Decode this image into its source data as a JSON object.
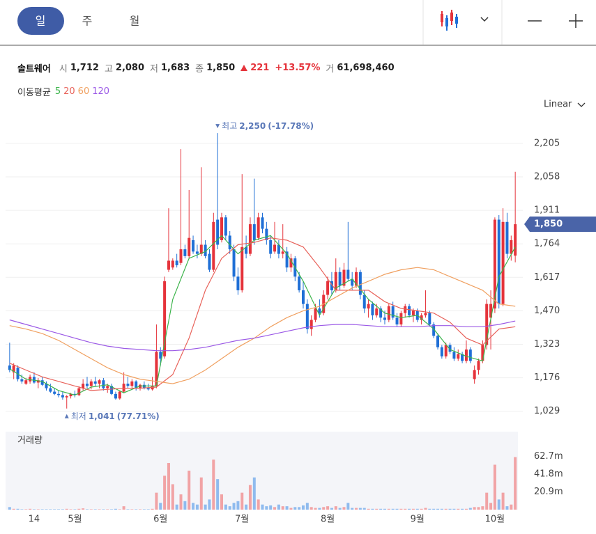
{
  "tabs": [
    "일",
    "주",
    "월"
  ],
  "stock": {
    "name": "솔트웨어",
    "open_label": "시",
    "open": "1,712",
    "high_label": "고",
    "high": "2,080",
    "low_label": "저",
    "low": "1,683",
    "close_label": "종",
    "close": "1,850",
    "change": "221",
    "change_pct": "+13.57%",
    "volume_label": "거",
    "volume": "61,698,460"
  },
  "ma_label": "이동평균",
  "scale_mode": "Linear",
  "chart_data": {
    "type": "candlestick",
    "up_color": "#e5333b",
    "down_color": "#1f6fd6",
    "up_volume_color": "#f1a3a5",
    "down_volume_color": "#8fbbee",
    "ohlc": [
      [
        1230,
        1330,
        1200,
        1210
      ],
      [
        1200,
        1240,
        1170,
        1230
      ],
      [
        1220,
        1230,
        1160,
        1170
      ],
      [
        1170,
        1190,
        1150,
        1160
      ],
      [
        1150,
        1175,
        1145,
        1165
      ],
      [
        1160,
        1190,
        1150,
        1180
      ],
      [
        1180,
        1200,
        1150,
        1155
      ],
      [
        1155,
        1175,
        1130,
        1165
      ],
      [
        1165,
        1180,
        1140,
        1145
      ],
      [
        1150,
        1160,
        1120,
        1130
      ],
      [
        1130,
        1150,
        1110,
        1115
      ],
      [
        1115,
        1130,
        1100,
        1105
      ],
      [
        1105,
        1120,
        1090,
        1100
      ],
      [
        1100,
        1115,
        1080,
        1090
      ],
      [
        1090,
        1100,
        1041,
        1095
      ],
      [
        1095,
        1110,
        1085,
        1105
      ],
      [
        1105,
        1120,
        1090,
        1100
      ],
      [
        1100,
        1140,
        1095,
        1130
      ],
      [
        1130,
        1170,
        1120,
        1150
      ],
      [
        1150,
        1180,
        1130,
        1140
      ],
      [
        1140,
        1170,
        1125,
        1160
      ],
      [
        1160,
        1180,
        1140,
        1150
      ],
      [
        1150,
        1170,
        1130,
        1165
      ],
      [
        1165,
        1175,
        1120,
        1130
      ],
      [
        1130,
        1150,
        1110,
        1140
      ],
      [
        1140,
        1150,
        1100,
        1105
      ],
      [
        1105,
        1115,
        1080,
        1085
      ],
      [
        1085,
        1120,
        1080,
        1115
      ],
      [
        1115,
        1200,
        1110,
        1150
      ],
      [
        1150,
        1180,
        1130,
        1140
      ],
      [
        1140,
        1170,
        1130,
        1160
      ],
      [
        1160,
        1165,
        1120,
        1130
      ],
      [
        1130,
        1150,
        1120,
        1145
      ],
      [
        1145,
        1160,
        1125,
        1130
      ],
      [
        1130,
        1150,
        1120,
        1125
      ],
      [
        1125,
        1180,
        1120,
        1140
      ],
      [
        1140,
        1410,
        1130,
        1290
      ],
      [
        1290,
        1310,
        1230,
        1260
      ],
      [
        1270,
        1620,
        1260,
        1600
      ],
      [
        1650,
        1920,
        1640,
        1690
      ],
      [
        1660,
        1700,
        1650,
        1690
      ],
      [
        1690,
        1720,
        1660,
        1670
      ],
      [
        1680,
        2180,
        1670,
        1740
      ],
      [
        1740,
        1760,
        1700,
        1710
      ],
      [
        1710,
        2000,
        1700,
        1790
      ],
      [
        1780,
        1800,
        1720,
        1730
      ],
      [
        1730,
        1760,
        1700,
        1720
      ],
      [
        1720,
        2100,
        1710,
        1760
      ],
      [
        1760,
        1780,
        1700,
        1710
      ],
      [
        1720,
        1740,
        1640,
        1650
      ],
      [
        1650,
        1900,
        1640,
        1860
      ],
      [
        1870,
        2250,
        1740,
        1760
      ],
      [
        1780,
        1900,
        1770,
        1880
      ],
      [
        1880,
        1890,
        1780,
        1800
      ],
      [
        1800,
        1820,
        1720,
        1740
      ],
      [
        1740,
        1760,
        1600,
        1620
      ],
      [
        1620,
        1660,
        1540,
        1560
      ],
      [
        1560,
        2070,
        1550,
        1750
      ],
      [
        1750,
        1800,
        1700,
        1720
      ],
      [
        1720,
        1880,
        1710,
        1850
      ],
      [
        1850,
        2050,
        1760,
        1780
      ],
      [
        1790,
        1900,
        1780,
        1880
      ],
      [
        1880,
        1900,
        1810,
        1830
      ],
      [
        1830,
        1860,
        1760,
        1780
      ],
      [
        1780,
        1800,
        1700,
        1720
      ],
      [
        1730,
        1860,
        1720,
        1760
      ],
      [
        1760,
        1780,
        1700,
        1720
      ],
      [
        1720,
        1850,
        1700,
        1730
      ],
      [
        1730,
        1750,
        1640,
        1660
      ],
      [
        1660,
        1720,
        1640,
        1700
      ],
      [
        1700,
        1710,
        1600,
        1620
      ],
      [
        1620,
        1640,
        1550,
        1560
      ],
      [
        1560,
        1600,
        1480,
        1500
      ],
      [
        1500,
        1520,
        1370,
        1390
      ],
      [
        1390,
        1450,
        1360,
        1430
      ],
      [
        1430,
        1500,
        1420,
        1480
      ],
      [
        1480,
        1520,
        1440,
        1460
      ],
      [
        1460,
        1560,
        1450,
        1540
      ],
      [
        1540,
        1620,
        1520,
        1600
      ],
      [
        1600,
        1640,
        1540,
        1560
      ],
      [
        1560,
        1700,
        1550,
        1640
      ],
      [
        1640,
        1660,
        1560,
        1580
      ],
      [
        1580,
        1680,
        1570,
        1650
      ],
      [
        1650,
        1860,
        1600,
        1610
      ],
      [
        1610,
        1640,
        1560,
        1580
      ],
      [
        1580,
        1660,
        1570,
        1640
      ],
      [
        1640,
        1650,
        1520,
        1540
      ],
      [
        1540,
        1560,
        1460,
        1480
      ],
      [
        1480,
        1520,
        1440,
        1500
      ],
      [
        1500,
        1510,
        1430,
        1450
      ],
      [
        1450,
        1500,
        1440,
        1480
      ],
      [
        1480,
        1490,
        1420,
        1440
      ],
      [
        1440,
        1470,
        1410,
        1430
      ],
      [
        1430,
        1500,
        1420,
        1490
      ],
      [
        1490,
        1510,
        1430,
        1440
      ],
      [
        1440,
        1460,
        1400,
        1410
      ],
      [
        1410,
        1470,
        1400,
        1460
      ],
      [
        1460,
        1500,
        1440,
        1490
      ],
      [
        1490,
        1500,
        1440,
        1450
      ],
      [
        1450,
        1480,
        1420,
        1470
      ],
      [
        1470,
        1480,
        1420,
        1430
      ],
      [
        1430,
        1460,
        1410,
        1450
      ],
      [
        1450,
        1560,
        1440,
        1460
      ],
      [
        1460,
        1470,
        1400,
        1410
      ],
      [
        1410,
        1420,
        1350,
        1360
      ],
      [
        1360,
        1370,
        1300,
        1310
      ],
      [
        1310,
        1320,
        1260,
        1270
      ],
      [
        1270,
        1330,
        1260,
        1320
      ],
      [
        1320,
        1330,
        1280,
        1290
      ],
      [
        1290,
        1310,
        1250,
        1260
      ],
      [
        1260,
        1300,
        1250,
        1280
      ],
      [
        1280,
        1290,
        1240,
        1250
      ],
      [
        1250,
        1340,
        1240,
        1300
      ],
      [
        1300,
        1310,
        1240,
        1250
      ],
      [
        1170,
        1230,
        1150,
        1210
      ],
      [
        1210,
        1260,
        1190,
        1250
      ],
      [
        1250,
        1340,
        1240,
        1320
      ],
      [
        1320,
        1520,
        1300,
        1500
      ],
      [
        1440,
        1560,
        1300,
        1500
      ],
      [
        1480,
        1880,
        1460,
        1870
      ],
      [
        1870,
        1890,
        1480,
        1500
      ],
      [
        1500,
        1920,
        1490,
        1860
      ],
      [
        1860,
        1900,
        1700,
        1720
      ],
      [
        1720,
        1800,
        1690,
        1780
      ],
      [
        1712,
        2080,
        1683,
        1850
      ]
    ],
    "volume": [
      3,
      1,
      1,
      0.5,
      0.5,
      1,
      0.5,
      0.5,
      0.5,
      0.5,
      0.5,
      0.5,
      0.5,
      0.5,
      1,
      0.5,
      0.5,
      1,
      1.5,
      0.5,
      0.5,
      0.5,
      0.5,
      0.5,
      0.5,
      0.5,
      1,
      0.5,
      4,
      0.5,
      0.5,
      0.5,
      0.5,
      0.5,
      0.5,
      1,
      20,
      8,
      40,
      55,
      30,
      6,
      18,
      10,
      46,
      8,
      6,
      38,
      6,
      12,
      59,
      36,
      18,
      6,
      4,
      8,
      10,
      20,
      6,
      29,
      38,
      12,
      6,
      4,
      5,
      3,
      6,
      4,
      4,
      2,
      3,
      3,
      5,
      8,
      3,
      2,
      2,
      3,
      4,
      2,
      4,
      2,
      3,
      8,
      2,
      2,
      2,
      2,
      1,
      1,
      1,
      1,
      1,
      1,
      1,
      1,
      1,
      1,
      1,
      1,
      1,
      1,
      2,
      1,
      1,
      1,
      1,
      1,
      1,
      1,
      1,
      1,
      1,
      2,
      3,
      3,
      4,
      20,
      8,
      53,
      12,
      20,
      4,
      6,
      62
    ],
    "series": [
      {
        "name": "5",
        "color": "#3cb44b",
        "x": [
          0,
          4,
          8,
          12,
          16,
          20,
          24,
          28,
          32,
          36,
          40,
          44,
          48,
          52,
          56,
          60,
          64,
          68,
          72,
          76,
          80,
          84,
          88,
          92,
          96,
          100,
          104,
          108,
          112,
          116,
          120,
          124
        ],
        "values": [
          1215,
          1170,
          1160,
          1120,
          1100,
          1135,
          1145,
          1110,
          1140,
          1140,
          1520,
          1700,
          1730,
          1800,
          1720,
          1780,
          1800,
          1720,
          1600,
          1450,
          1570,
          1610,
          1520,
          1460,
          1440,
          1450,
          1390,
          1300,
          1270,
          1250,
          1620,
          1750
        ]
      },
      {
        "name": "20",
        "color": "#e8625a",
        "x": [
          0,
          4,
          8,
          12,
          16,
          20,
          24,
          28,
          32,
          36,
          40,
          44,
          48,
          52,
          56,
          60,
          64,
          68,
          72,
          76,
          80,
          84,
          88,
          92,
          96,
          100,
          104,
          108,
          112,
          116,
          120,
          124
        ],
        "values": [
          1240,
          1210,
          1180,
          1160,
          1140,
          1120,
          1125,
          1130,
          1130,
          1135,
          1190,
          1350,
          1560,
          1700,
          1760,
          1770,
          1790,
          1780,
          1750,
          1660,
          1560,
          1560,
          1560,
          1510,
          1480,
          1470,
          1460,
          1420,
          1350,
          1320,
          1390,
          1400
        ]
      },
      {
        "name": "60",
        "color": "#f0a060",
        "x": [
          0,
          4,
          8,
          12,
          16,
          20,
          24,
          28,
          32,
          36,
          40,
          44,
          48,
          52,
          56,
          60,
          64,
          68,
          72,
          76,
          80,
          84,
          88,
          92,
          96,
          100,
          104,
          108,
          112,
          116,
          120,
          124
        ],
        "values": [
          1405,
          1390,
          1370,
          1340,
          1300,
          1260,
          1220,
          1190,
          1170,
          1160,
          1150,
          1170,
          1210,
          1260,
          1310,
          1350,
          1400,
          1440,
          1470,
          1490,
          1530,
          1570,
          1600,
          1630,
          1650,
          1660,
          1650,
          1620,
          1590,
          1560,
          1500,
          1490
        ]
      },
      {
        "name": "120",
        "color": "#9b59e6",
        "x": [
          0,
          4,
          8,
          12,
          16,
          20,
          24,
          28,
          32,
          36,
          40,
          44,
          48,
          52,
          56,
          60,
          64,
          68,
          72,
          76,
          80,
          84,
          88,
          92,
          96,
          100,
          104,
          108,
          112,
          116,
          120,
          124
        ],
        "values": [
          1430,
          1410,
          1390,
          1370,
          1350,
          1330,
          1315,
          1305,
          1300,
          1295,
          1295,
          1300,
          1310,
          1325,
          1340,
          1350,
          1365,
          1380,
          1395,
          1405,
          1410,
          1410,
          1405,
          1400,
          1400,
          1400,
          1405,
          1405,
          1400,
          1400,
          1410,
          1425
        ]
      }
    ],
    "ylim": [
      970,
      2330
    ],
    "yticks": [
      {
        "value": 1029,
        "label": "1,029"
      },
      {
        "value": 1176,
        "label": "1,176"
      },
      {
        "value": 1323,
        "label": "1,323"
      },
      {
        "value": 1470,
        "label": "1,470"
      },
      {
        "value": 1617,
        "label": "1,617"
      },
      {
        "value": 1764,
        "label": "1,764"
      },
      {
        "value": 1911,
        "label": "1,911"
      },
      {
        "value": 2058,
        "label": "2,058"
      },
      {
        "value": 2205,
        "label": "2,205"
      }
    ],
    "grid": true,
    "xlim": [
      -1,
      125
    ],
    "xticks": [
      {
        "value": 6,
        "label": "14"
      },
      {
        "value": 16,
        "label": "5월"
      },
      {
        "value": 37,
        "label": "6월"
      },
      {
        "value": 57,
        "label": "7월"
      },
      {
        "value": 78,
        "label": "8월"
      },
      {
        "value": 100,
        "label": "9월"
      },
      {
        "value": 119,
        "label": "10월"
      }
    ],
    "volume_title": "거래량",
    "volume_ylim": [
      0,
      92
    ],
    "volume_yticks": [
      {
        "value": 20.9,
        "label": "20.9m"
      },
      {
        "value": 41.8,
        "label": "41.8m"
      },
      {
        "value": 62.7,
        "label": "62.7m"
      }
    ],
    "last_price_label": "1,850",
    "annotations": {
      "high": {
        "label": "최고",
        "value": "2,250",
        "change": "(-17.78%)"
      },
      "low": {
        "label": "최저",
        "value": "1,041",
        "change": "(77.71%)"
      }
    }
  }
}
